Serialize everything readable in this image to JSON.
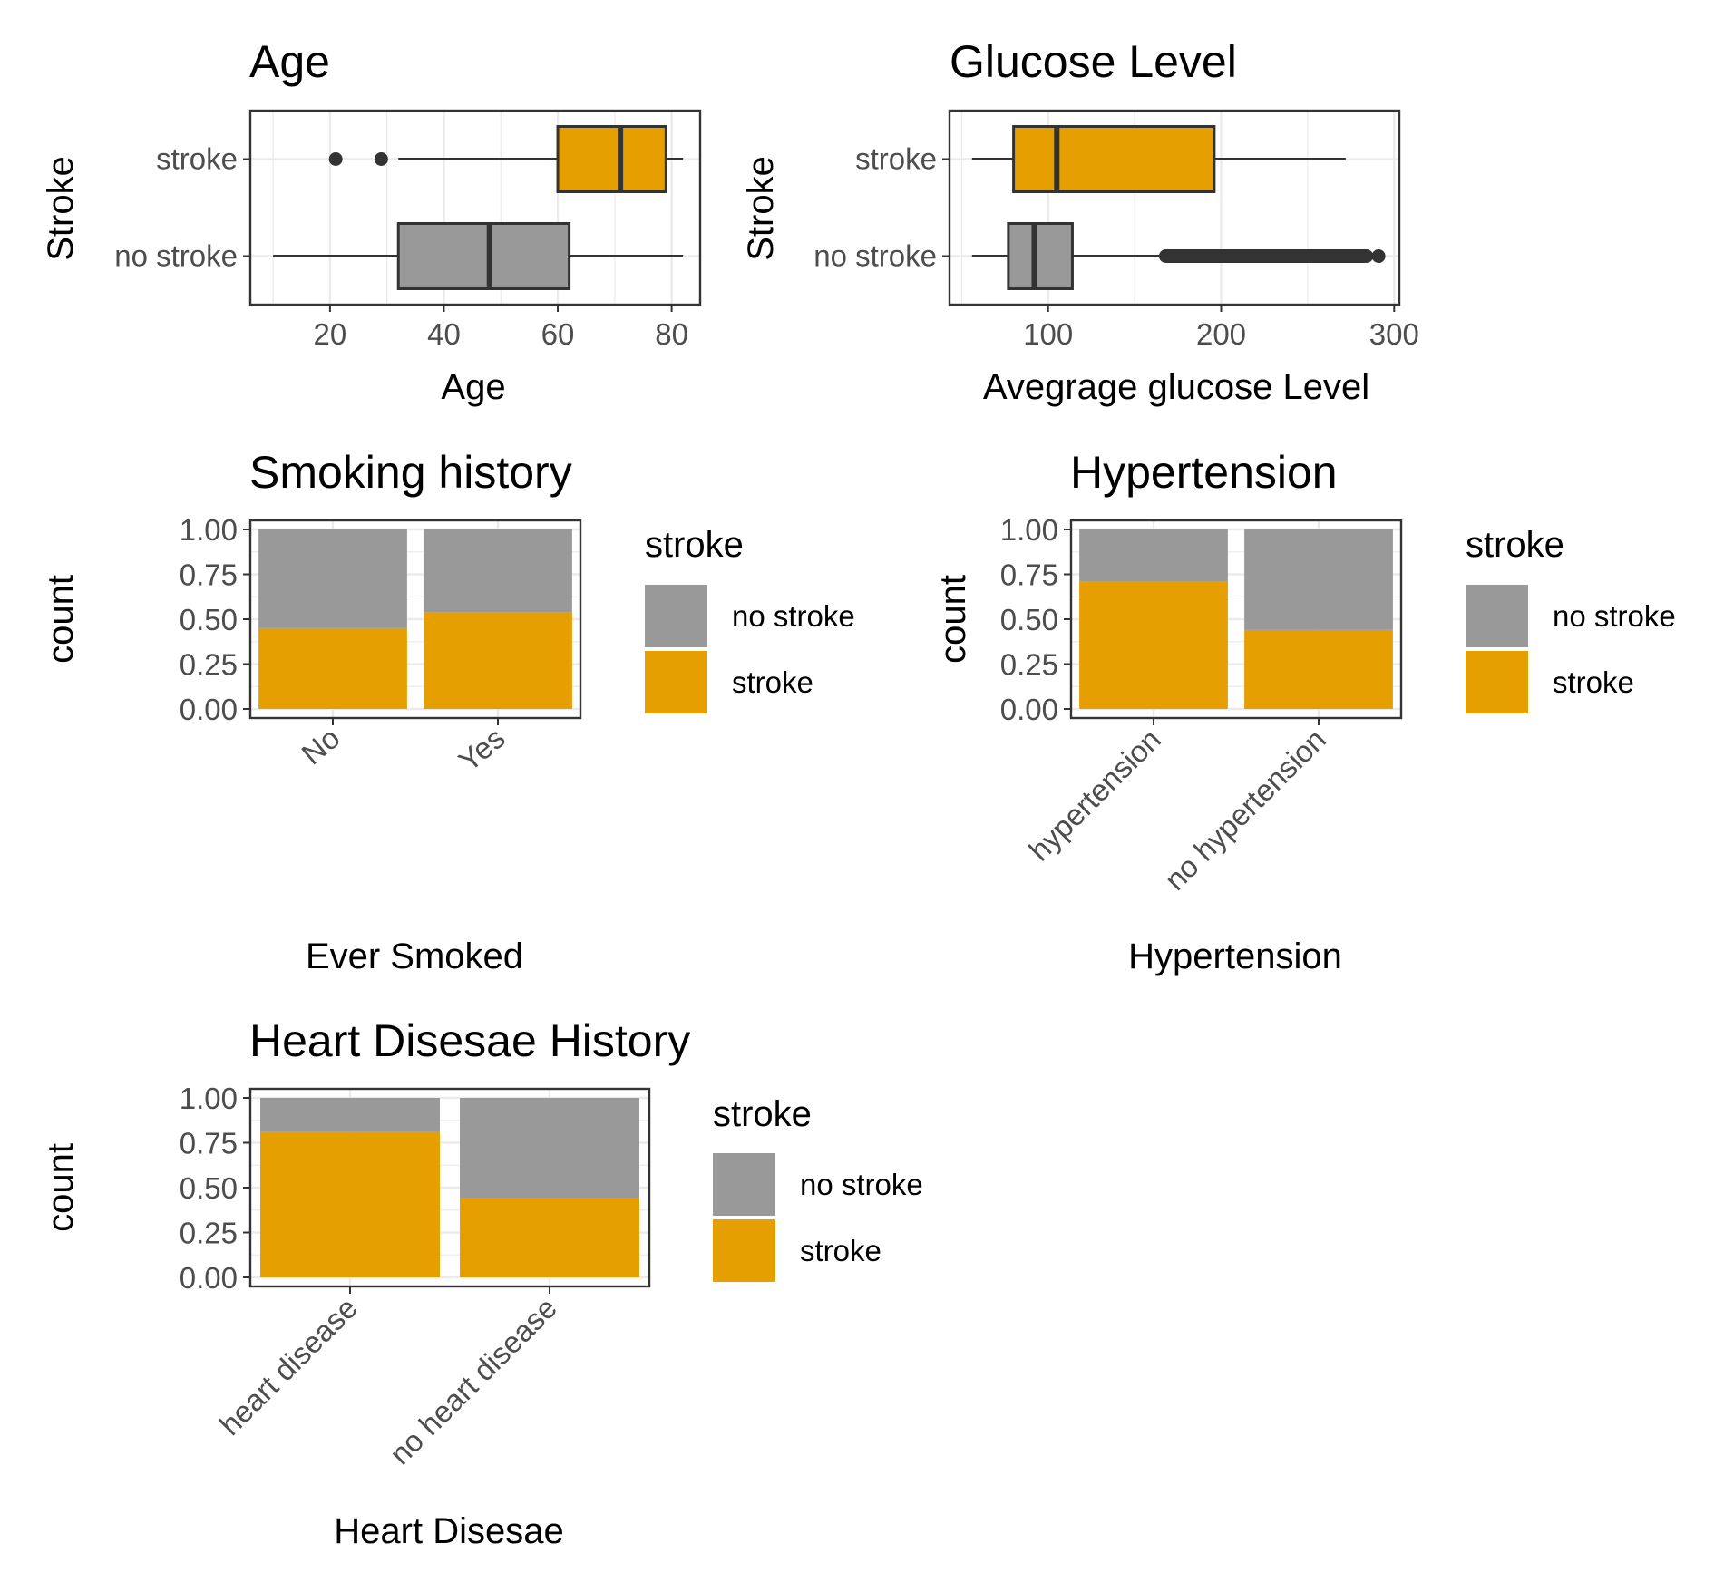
{
  "colors": {
    "stroke": "#E69F00",
    "no_stroke": "#999999",
    "grid": "#ebebeb",
    "outline": "#333333"
  },
  "chart_data": [
    {
      "type": "boxplot",
      "title": "Age",
      "xlabel": "Age",
      "ylabel": "Stroke",
      "orientation": "horizontal",
      "xlim": [
        6,
        85
      ],
      "xticks": [
        20,
        40,
        60,
        80
      ],
      "categories": [
        "stroke",
        "no stroke"
      ],
      "boxes": [
        {
          "name": "stroke",
          "whisker_low": 32,
          "q1": 60,
          "median": 71,
          "q3": 79,
          "whisker_high": 82,
          "outliers": [
            21,
            29
          ]
        },
        {
          "name": "no stroke",
          "whisker_low": 10,
          "q1": 32,
          "median": 48,
          "q3": 62,
          "whisker_high": 82,
          "outliers": []
        }
      ]
    },
    {
      "type": "boxplot",
      "title": "Glucose Level",
      "xlabel": "Avegrage glucose Level",
      "ylabel": "Stroke",
      "orientation": "horizontal",
      "xlim": [
        43,
        303
      ],
      "xticks": [
        100,
        200,
        300
      ],
      "categories": [
        "stroke",
        "no stroke"
      ],
      "boxes": [
        {
          "name": "stroke",
          "whisker_low": 56,
          "q1": 80,
          "median": 105,
          "q3": 196,
          "whisker_high": 272,
          "outliers": []
        },
        {
          "name": "no stroke",
          "whisker_low": 56,
          "q1": 77,
          "median": 92,
          "q3": 114,
          "whisker_high": 168,
          "outliers_range": [
            168,
            284
          ],
          "outliers": [
            291
          ]
        }
      ]
    },
    {
      "type": "bar",
      "stacked": "fill",
      "title": "Smoking history",
      "xlabel": "Ever Smoked",
      "ylabel": "count",
      "ylim": [
        0,
        1
      ],
      "yticks": [
        "0.00",
        "0.25",
        "0.50",
        "0.75",
        "1.00"
      ],
      "categories": [
        "No",
        "Yes"
      ],
      "series": [
        {
          "name": "no stroke",
          "values": [
            0.55,
            0.46
          ]
        },
        {
          "name": "stroke",
          "values": [
            0.45,
            0.54
          ]
        }
      ],
      "legend": {
        "title": "stroke",
        "items": [
          "no stroke",
          "stroke"
        ],
        "position": "right"
      }
    },
    {
      "type": "bar",
      "stacked": "fill",
      "title": "Hypertension",
      "xlabel": "Hypertension",
      "ylabel": "count",
      "ylim": [
        0,
        1
      ],
      "yticks": [
        "0.00",
        "0.25",
        "0.50",
        "0.75",
        "1.00"
      ],
      "categories": [
        "hypertension",
        "no hypertension"
      ],
      "series": [
        {
          "name": "no stroke",
          "values": [
            0.29,
            0.56
          ]
        },
        {
          "name": "stroke",
          "values": [
            0.71,
            0.44
          ]
        }
      ],
      "legend": {
        "title": "stroke",
        "items": [
          "no stroke",
          "stroke"
        ],
        "position": "right"
      }
    },
    {
      "type": "bar",
      "stacked": "fill",
      "title": "Heart Disesae History",
      "xlabel": "Heart Disesae",
      "ylabel": "count",
      "ylim": [
        0,
        1
      ],
      "yticks": [
        "0.00",
        "0.25",
        "0.50",
        "0.75",
        "1.00"
      ],
      "categories": [
        "heart disease",
        "no heart disease"
      ],
      "series": [
        {
          "name": "no stroke",
          "values": [
            0.19,
            0.56
          ]
        },
        {
          "name": "stroke",
          "values": [
            0.81,
            0.44
          ]
        }
      ],
      "legend": {
        "title": "stroke",
        "items": [
          "no stroke",
          "stroke"
        ],
        "position": "right"
      }
    }
  ]
}
